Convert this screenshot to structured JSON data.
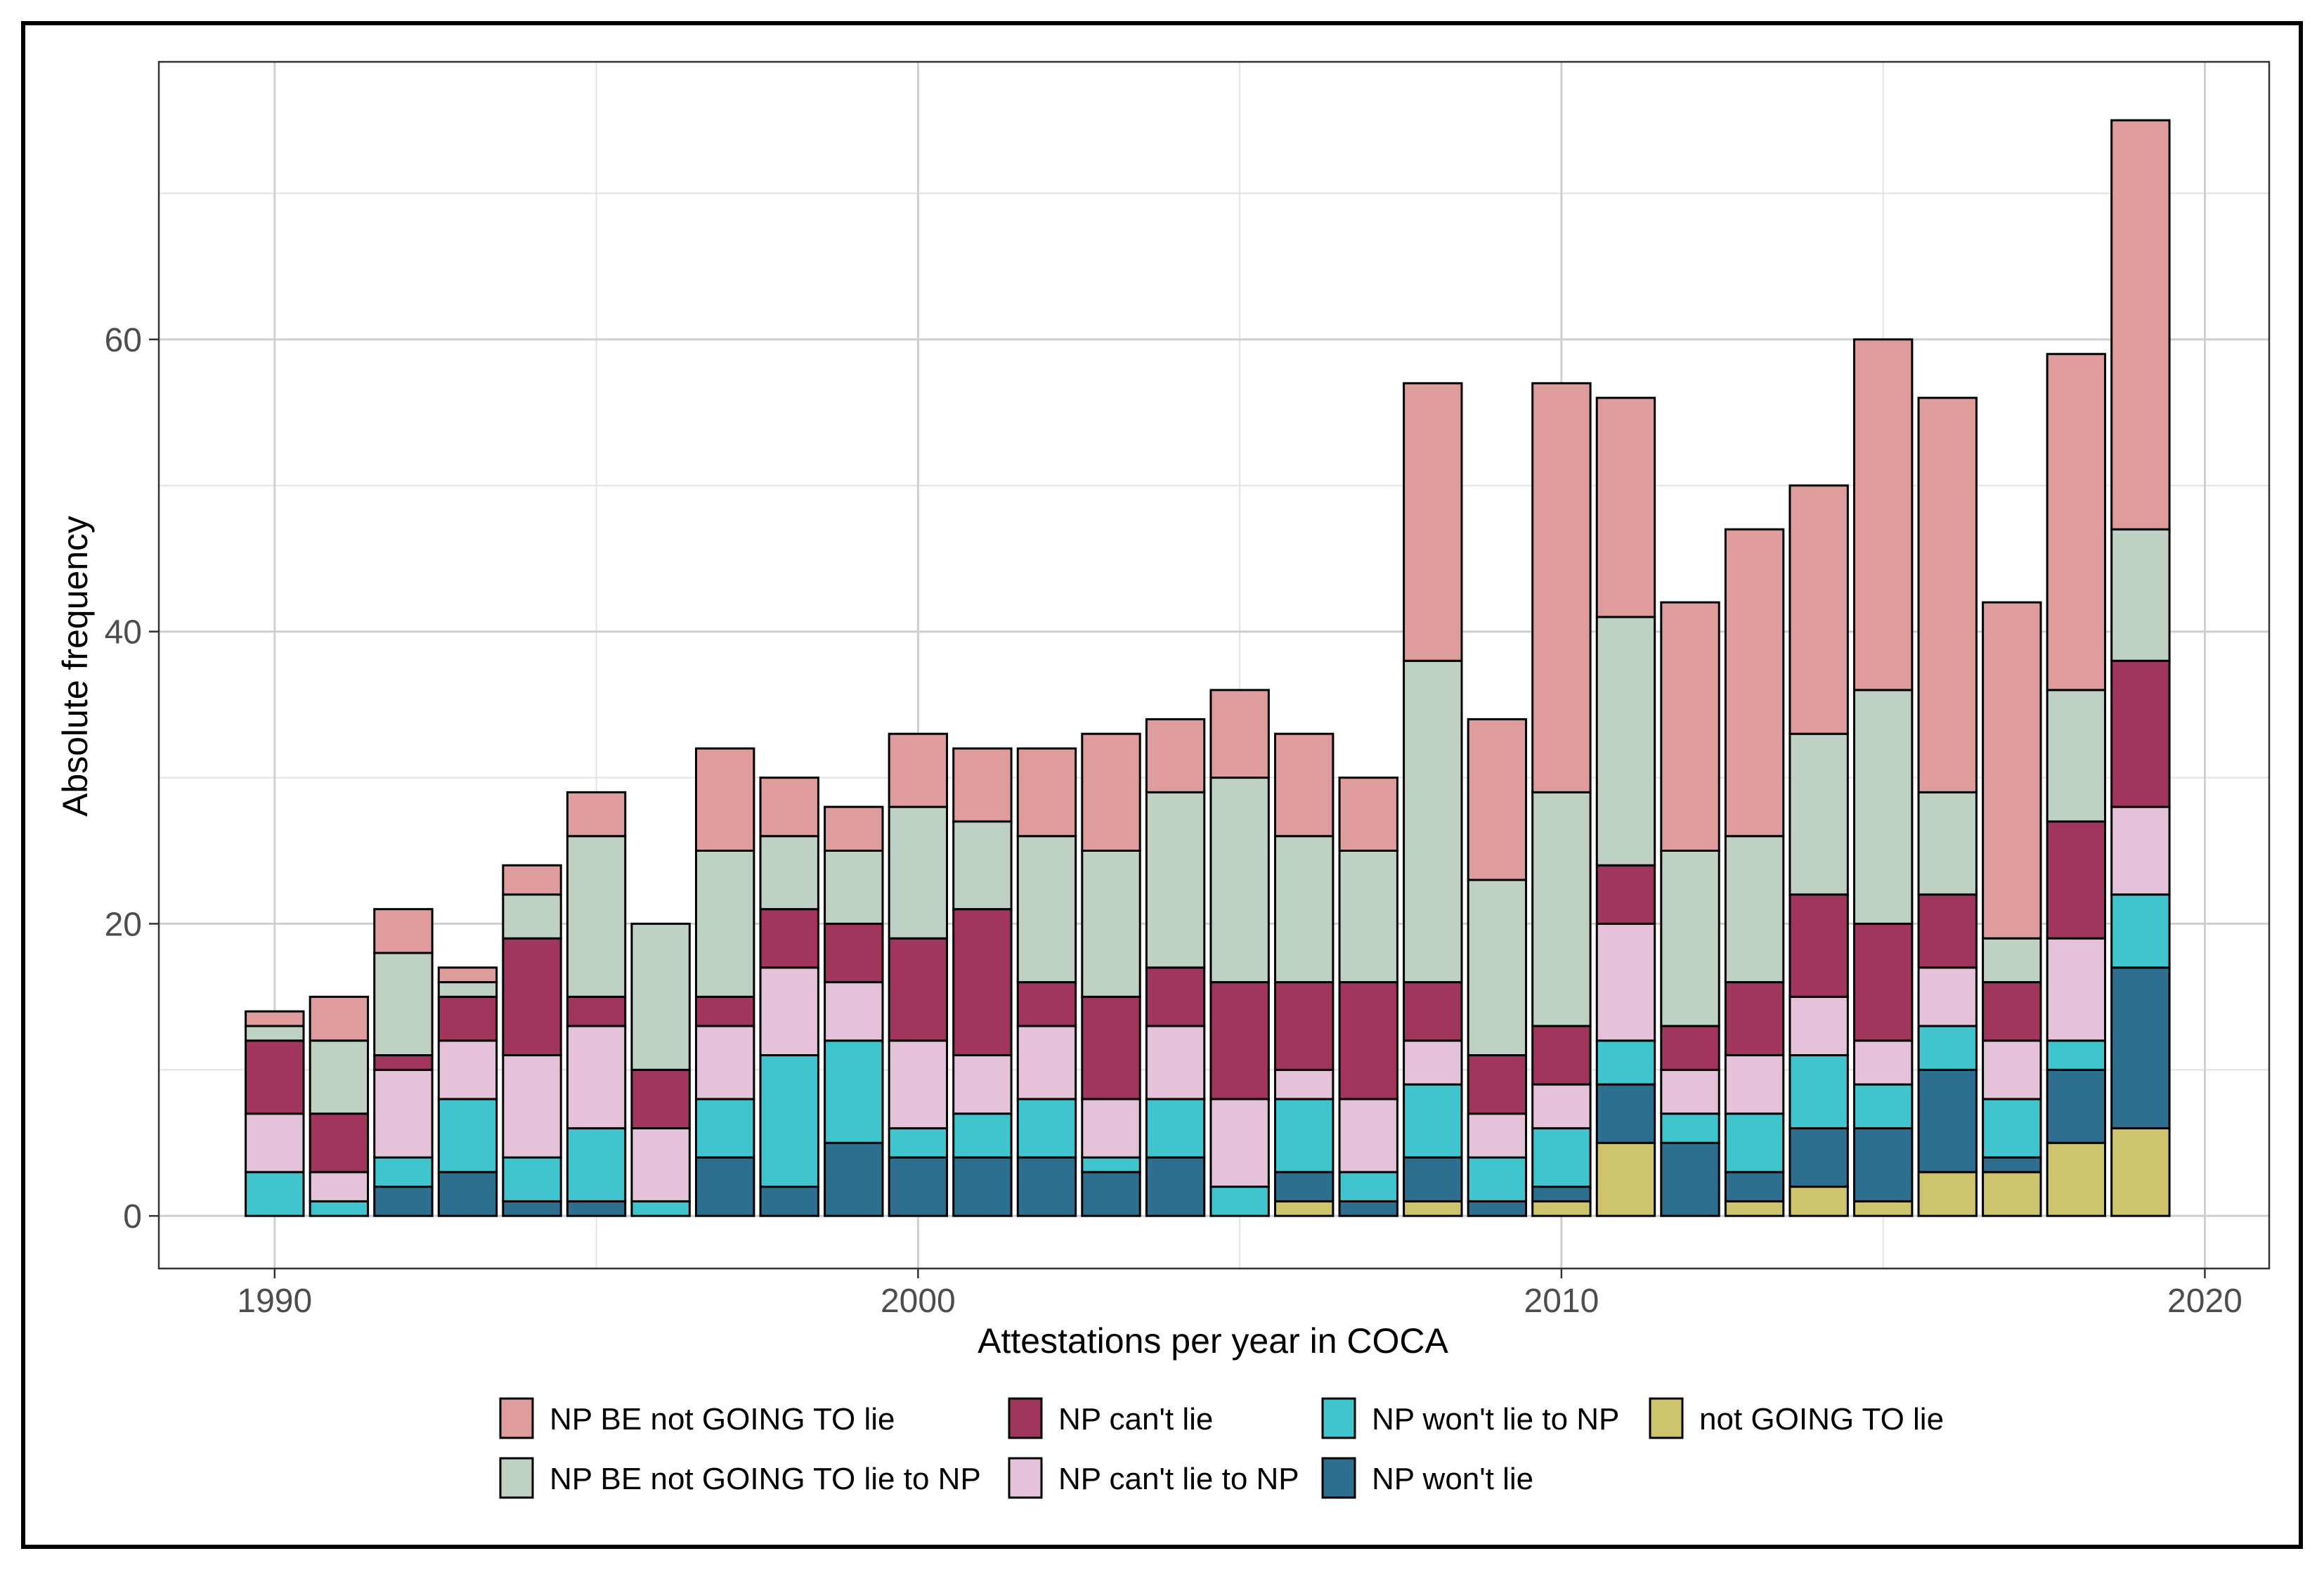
{
  "chart_data": {
    "type": "bar",
    "stacked": true,
    "title": "",
    "xlabel": "Attestations per year in COCA",
    "ylabel": "Absolute frequency",
    "xlim": [
      1988.2,
      2021
    ],
    "ylim": [
      -3.6,
      79
    ],
    "x_ticks": [
      1990,
      2000,
      2010,
      2020
    ],
    "y_ticks": [
      0,
      20,
      40,
      60
    ],
    "grid": true,
    "legend_position": "bottom",
    "years": [
      1990,
      1991,
      1992,
      1993,
      1994,
      1995,
      1996,
      1997,
      1998,
      1999,
      2000,
      2001,
      2002,
      2003,
      2004,
      2005,
      2006,
      2007,
      2008,
      2009,
      2010,
      2011,
      2012,
      2013,
      2014,
      2015,
      2016,
      2017,
      2018,
      2019
    ],
    "series": [
      {
        "name": "not GOING TO lie",
        "color": "#cfc46e",
        "values": [
          0,
          0,
          0,
          0,
          0,
          0,
          0,
          0,
          0,
          0,
          0,
          0,
          0,
          0,
          0,
          0,
          1,
          0,
          1,
          0,
          1,
          5,
          0,
          1,
          2,
          1,
          3,
          3,
          5,
          6
        ]
      },
      {
        "name": "NP won't lie",
        "color": "#2e6e8e",
        "values": [
          0,
          0,
          2,
          3,
          1,
          1,
          0,
          4,
          2,
          5,
          4,
          4,
          4,
          3,
          4,
          0,
          2,
          1,
          3,
          1,
          1,
          4,
          5,
          2,
          4,
          5,
          7,
          1,
          5,
          11
        ]
      },
      {
        "name": "NP won't lie to NP",
        "color": "#40c5cf",
        "values": [
          3,
          1,
          2,
          5,
          3,
          5,
          1,
          4,
          9,
          7,
          2,
          3,
          4,
          1,
          4,
          2,
          5,
          2,
          5,
          3,
          4,
          3,
          2,
          4,
          5,
          3,
          3,
          4,
          2,
          5
        ]
      },
      {
        "name": "NP can't lie to NP",
        "color": "#e3c2da",
        "values": [
          4,
          2,
          6,
          4,
          7,
          7,
          5,
          5,
          6,
          4,
          6,
          4,
          5,
          4,
          5,
          6,
          2,
          5,
          3,
          3,
          3,
          8,
          3,
          4,
          4,
          3,
          4,
          4,
          7,
          6
        ]
      },
      {
        "name": "NP can't lie",
        "color": "#a0355e",
        "values": [
          5,
          4,
          1,
          3,
          8,
          2,
          4,
          2,
          4,
          4,
          7,
          10,
          3,
          7,
          4,
          8,
          6,
          8,
          4,
          4,
          4,
          4,
          3,
          5,
          7,
          8,
          5,
          4,
          8,
          10
        ]
      },
      {
        "name": "NP BE not GOING TO lie to NP",
        "color": "#bfd1c3",
        "values": [
          1,
          5,
          7,
          1,
          3,
          11,
          10,
          10,
          5,
          5,
          9,
          6,
          10,
          10,
          12,
          14,
          10,
          9,
          22,
          12,
          16,
          17,
          12,
          10,
          11,
          16,
          7,
          3,
          9,
          9
        ]
      },
      {
        "name": "NP BE not GOING TO lie",
        "color": "#df9c9c",
        "values": [
          1,
          3,
          3,
          1,
          2,
          3,
          0,
          7,
          4,
          3,
          5,
          5,
          6,
          8,
          5,
          6,
          7,
          5,
          19,
          11,
          28,
          15,
          17,
          21,
          17,
          24,
          27,
          23,
          23,
          28
        ]
      }
    ],
    "legend_order": [
      "NP BE not GOING TO lie",
      "NP BE not GOING TO lie to NP",
      "NP can't lie",
      "NP can't lie to NP",
      "NP won't lie to NP",
      "NP won't lie",
      "not GOING TO lie"
    ]
  }
}
